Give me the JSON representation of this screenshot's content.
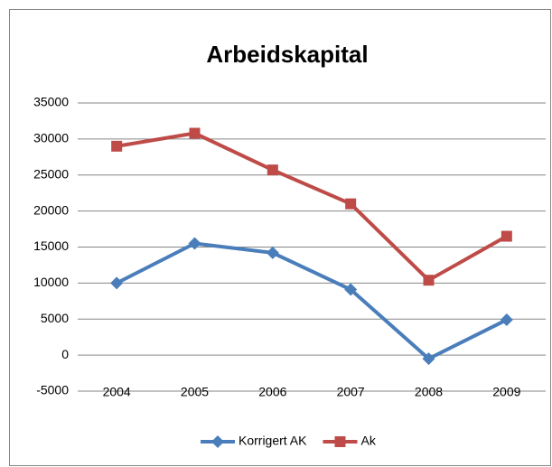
{
  "chart_data": {
    "type": "line",
    "title": "Arbeidskapital",
    "categories": [
      "2004",
      "2005",
      "2006",
      "2007",
      "2008",
      "2009"
    ],
    "series": [
      {
        "name": "Korrigert AK",
        "color": "#4a7ebb",
        "marker": "diamond",
        "values": [
          10000,
          15500,
          14200,
          9100,
          -500,
          4900
        ]
      },
      {
        "name": "Ak",
        "color": "#be4b48",
        "marker": "square",
        "values": [
          29000,
          30800,
          25700,
          21000,
          10400,
          16500
        ]
      }
    ],
    "ylim": [
      -5000,
      35000
    ],
    "yticks": [
      -5000,
      0,
      5000,
      10000,
      15000,
      20000,
      25000,
      30000,
      35000
    ],
    "grid": true,
    "legend": "bottom"
  }
}
